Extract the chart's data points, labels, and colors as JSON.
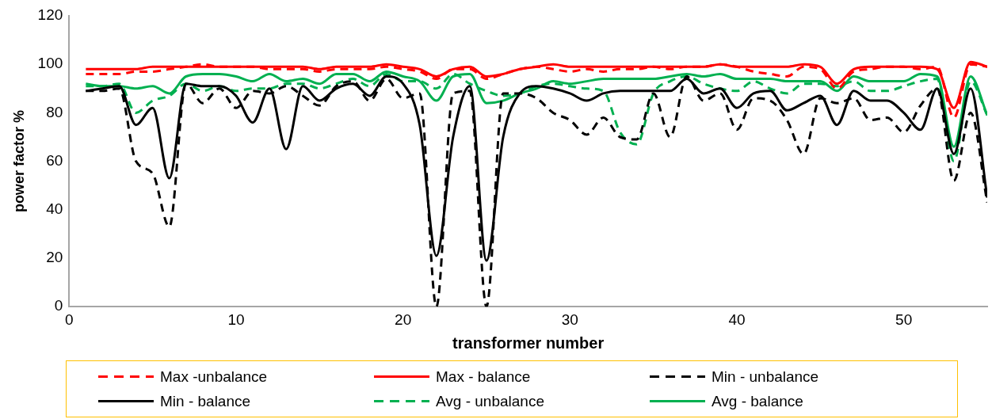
{
  "chart_data": {
    "type": "line",
    "xlabel": "transformer number",
    "ylabel": "power factor %",
    "x": [
      1,
      2,
      3,
      4,
      5,
      6,
      7,
      8,
      9,
      10,
      11,
      12,
      13,
      14,
      15,
      16,
      17,
      18,
      19,
      20,
      21,
      22,
      23,
      24,
      25,
      26,
      27,
      28,
      29,
      30,
      31,
      32,
      33,
      34,
      35,
      36,
      37,
      38,
      39,
      40,
      41,
      42,
      43,
      44,
      45,
      46,
      47,
      48,
      49,
      50,
      51,
      52,
      53,
      54,
      55
    ],
    "xlim": [
      0,
      55
    ],
    "xticks": [
      0,
      10,
      20,
      30,
      40,
      50
    ],
    "ylim": [
      0,
      120
    ],
    "yticks": [
      0,
      20,
      40,
      60,
      80,
      100,
      120
    ],
    "grid": false,
    "legend": "bottom",
    "marker": "none",
    "series": [
      {
        "name": "Max -unbalance",
        "color": "#ff0000",
        "line_style": "dashed",
        "values": [
          96,
          96,
          96,
          97,
          97,
          98,
          99,
          100,
          99,
          99,
          99,
          98,
          98,
          98,
          97,
          98,
          98,
          98,
          99,
          98,
          97,
          94,
          98,
          98,
          94,
          96,
          98,
          99,
          98,
          97,
          98,
          97,
          98,
          98,
          99,
          98,
          99,
          99,
          100,
          99,
          97,
          96,
          95,
          99,
          98,
          90,
          97,
          98,
          99,
          99,
          98,
          99,
          78,
          100,
          99
        ]
      },
      {
        "name": "Max - balance",
        "color": "#ff0000",
        "line_style": "solid",
        "values": [
          98,
          98,
          98,
          98,
          99,
          99,
          99,
          99,
          99,
          99,
          99,
          99,
          99,
          99,
          98,
          99,
          99,
          99,
          100,
          99,
          98,
          95,
          98,
          99,
          95,
          96,
          98,
          99,
          100,
          99,
          99,
          99,
          99,
          99,
          99,
          99,
          99,
          99,
          100,
          99,
          99,
          99,
          99,
          100,
          99,
          92,
          98,
          99,
          99,
          99,
          99,
          98,
          82,
          101,
          99
        ]
      },
      {
        "name": "Min - unbalance",
        "color": "#000000",
        "line_style": "dashed",
        "values": [
          89,
          89,
          90,
          60,
          55,
          33,
          92,
          84,
          90,
          82,
          89,
          88,
          91,
          87,
          83,
          91,
          93,
          85,
          94,
          86,
          88,
          0,
          88,
          89,
          0,
          88,
          88,
          86,
          80,
          77,
          71,
          78,
          70,
          69,
          88,
          70,
          95,
          85,
          88,
          73,
          86,
          85,
          77,
          63,
          86,
          84,
          86,
          77,
          78,
          72,
          83,
          90,
          52,
          80,
          43
        ]
      },
      {
        "name": "Min - balance",
        "color": "#000000",
        "line_style": "solid",
        "values": [
          89,
          90,
          91,
          75,
          82,
          53,
          92,
          91,
          91,
          87,
          76,
          90,
          65,
          91,
          85,
          90,
          92,
          87,
          95,
          92,
          75,
          21,
          70,
          91,
          19,
          70,
          88,
          91,
          90,
          88,
          85,
          88,
          89,
          89,
          89,
          89,
          94,
          88,
          90,
          82,
          88,
          89,
          81,
          84,
          87,
          75,
          89,
          85,
          85,
          80,
          73,
          90,
          63,
          90,
          45
        ]
      },
      {
        "name": "Avg - unbalance",
        "color": "#00b050",
        "line_style": "dashed",
        "values": [
          91,
          91,
          92,
          80,
          85,
          87,
          92,
          89,
          91,
          89,
          90,
          90,
          92,
          92,
          90,
          92,
          94,
          91,
          96,
          93,
          93,
          90,
          96,
          92,
          89,
          87,
          88,
          91,
          92,
          91,
          90,
          89,
          72,
          67,
          88,
          93,
          95,
          92,
          90,
          89,
          93,
          90,
          88,
          92,
          92,
          91,
          93,
          89,
          89,
          91,
          93,
          94,
          60,
          93,
          79
        ]
      },
      {
        "name": "Avg - balance",
        "color": "#00b050",
        "line_style": "solid",
        "values": [
          92,
          91,
          91,
          90,
          91,
          88,
          95,
          96,
          96,
          95,
          93,
          96,
          93,
          94,
          92,
          96,
          96,
          93,
          97,
          95,
          93,
          85,
          95,
          96,
          84,
          85,
          88,
          90,
          93,
          92,
          93,
          94,
          94,
          94,
          94,
          95,
          96,
          95,
          96,
          94,
          94,
          94,
          93,
          93,
          93,
          89,
          95,
          93,
          93,
          93,
          96,
          95,
          66,
          95,
          79
        ]
      }
    ]
  }
}
